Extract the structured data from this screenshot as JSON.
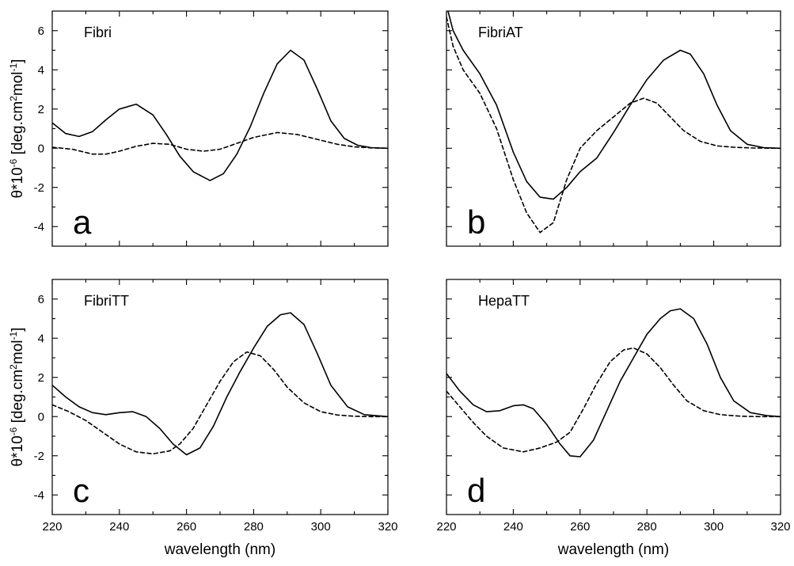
{
  "chart_data": [
    {
      "type": "line",
      "panel": "a",
      "title": "Fibri",
      "xlabel": "",
      "ylabel": "θ*10⁻⁶ [deg.cm²mol⁻¹]",
      "xlim": [
        220,
        320
      ],
      "ylim": [
        -5,
        7
      ],
      "xticks": [
        220,
        240,
        260,
        280,
        300,
        320
      ],
      "yticks": [
        -4,
        -2,
        0,
        2,
        4,
        6
      ],
      "show_xtick_labels": false,
      "show_ytick_labels": true,
      "series": [
        {
          "style": "solid",
          "x": [
            220,
            224,
            228,
            232,
            236,
            240,
            245,
            250,
            254,
            258,
            262,
            267,
            271,
            275,
            279,
            283,
            287,
            291,
            295,
            299,
            303,
            307,
            311,
            315,
            320
          ],
          "y": [
            1.3,
            0.75,
            0.6,
            0.85,
            1.45,
            2.0,
            2.25,
            1.7,
            0.7,
            -0.4,
            -1.2,
            -1.65,
            -1.3,
            -0.3,
            1.1,
            2.8,
            4.3,
            5.0,
            4.5,
            3.0,
            1.4,
            0.5,
            0.15,
            0.03,
            0.0
          ]
        },
        {
          "style": "dashed",
          "x": [
            220,
            226,
            232,
            236,
            240,
            245,
            250,
            255,
            260,
            265,
            270,
            275,
            280,
            287,
            293,
            299,
            305,
            310,
            315,
            320
          ],
          "y": [
            0.05,
            -0.05,
            -0.3,
            -0.3,
            -0.15,
            0.1,
            0.25,
            0.2,
            -0.05,
            -0.15,
            -0.05,
            0.25,
            0.55,
            0.8,
            0.7,
            0.45,
            0.2,
            0.07,
            0.02,
            0.0
          ]
        }
      ]
    },
    {
      "type": "line",
      "panel": "b",
      "title": "FibriAT",
      "xlabel": "",
      "ylabel": "",
      "xlim": [
        220,
        320
      ],
      "ylim": [
        -5,
        7
      ],
      "xticks": [
        220,
        240,
        260,
        280,
        300,
        320
      ],
      "yticks": [
        -4,
        -2,
        0,
        2,
        4,
        6
      ],
      "show_xtick_labels": false,
      "show_ytick_labels": false,
      "series": [
        {
          "style": "solid",
          "x": [
            220,
            222,
            225,
            230,
            235,
            240,
            244,
            248,
            252,
            256,
            260,
            265,
            270,
            275,
            280,
            285,
            290,
            293,
            297,
            301,
            305,
            310,
            315,
            320
          ],
          "y": [
            7.3,
            6.0,
            5.0,
            3.8,
            2.2,
            -0.2,
            -1.7,
            -2.5,
            -2.6,
            -2.0,
            -1.2,
            -0.5,
            0.8,
            2.2,
            3.5,
            4.5,
            5.0,
            4.8,
            3.8,
            2.2,
            0.9,
            0.2,
            0.03,
            0.0
          ]
        },
        {
          "style": "dashed",
          "x": [
            220,
            222,
            225,
            230,
            235,
            240,
            244,
            248,
            252,
            256,
            260,
            265,
            270,
            275,
            279,
            283,
            287,
            291,
            296,
            301,
            306,
            312,
            320
          ],
          "y": [
            6.7,
            5.2,
            4.0,
            2.8,
            1.0,
            -1.6,
            -3.3,
            -4.3,
            -3.8,
            -1.6,
            0.0,
            0.9,
            1.6,
            2.3,
            2.55,
            2.3,
            1.6,
            0.9,
            0.35,
            0.12,
            0.05,
            0.01,
            0.0
          ]
        }
      ]
    },
    {
      "type": "line",
      "panel": "c",
      "title": "FibriTT",
      "xlabel": "wavelength (nm)",
      "ylabel": "θ*10⁻⁶ [deg.cm²mol⁻¹]",
      "xlim": [
        220,
        320
      ],
      "ylim": [
        -5,
        7
      ],
      "xticks": [
        220,
        240,
        260,
        280,
        300,
        320
      ],
      "yticks": [
        -4,
        -2,
        0,
        2,
        4,
        6
      ],
      "show_xtick_labels": true,
      "show_ytick_labels": true,
      "series": [
        {
          "style": "solid",
          "x": [
            220,
            224,
            228,
            232,
            236,
            240,
            244,
            248,
            252,
            256,
            260,
            264,
            268,
            272,
            276,
            280,
            284,
            288,
            291,
            295,
            299,
            303,
            308,
            313,
            320
          ],
          "y": [
            1.6,
            1.0,
            0.5,
            0.2,
            0.1,
            0.2,
            0.25,
            0.0,
            -0.6,
            -1.4,
            -1.95,
            -1.6,
            -0.5,
            1.0,
            2.3,
            3.5,
            4.6,
            5.2,
            5.3,
            4.7,
            3.2,
            1.6,
            0.5,
            0.1,
            0.0
          ]
        },
        {
          "style": "dashed",
          "x": [
            220,
            225,
            230,
            235,
            240,
            245,
            250,
            255,
            258,
            262,
            266,
            270,
            274,
            278,
            282,
            286,
            290,
            295,
            300,
            305,
            310,
            315,
            320
          ],
          "y": [
            0.6,
            0.25,
            -0.2,
            -0.8,
            -1.4,
            -1.8,
            -1.9,
            -1.75,
            -1.4,
            -0.6,
            0.6,
            1.8,
            2.8,
            3.3,
            3.1,
            2.4,
            1.5,
            0.7,
            0.25,
            0.08,
            0.02,
            0.0,
            0.0
          ]
        }
      ]
    },
    {
      "type": "line",
      "panel": "d",
      "title": "HepaTT",
      "xlabel": "wavelength (nm)",
      "ylabel": "",
      "xlim": [
        220,
        320
      ],
      "ylim": [
        -5,
        7
      ],
      "xticks": [
        220,
        240,
        260,
        280,
        300,
        320
      ],
      "yticks": [
        -4,
        -2,
        0,
        2,
        4,
        6
      ],
      "show_xtick_labels": true,
      "show_ytick_labels": false,
      "series": [
        {
          "style": "solid",
          "x": [
            220,
            224,
            228,
            232,
            236,
            240,
            243,
            246,
            250,
            254,
            257,
            260,
            264,
            268,
            272,
            276,
            280,
            284,
            287,
            290,
            294,
            298,
            302,
            306,
            311,
            316,
            320
          ],
          "y": [
            2.2,
            1.3,
            0.6,
            0.25,
            0.3,
            0.55,
            0.6,
            0.4,
            -0.4,
            -1.4,
            -2.0,
            -2.05,
            -1.2,
            0.3,
            1.8,
            3.0,
            4.2,
            5.0,
            5.4,
            5.5,
            5.0,
            3.7,
            2.0,
            0.8,
            0.2,
            0.05,
            0.0
          ]
        },
        {
          "style": "dashed",
          "x": [
            220,
            224,
            228,
            232,
            237,
            243,
            248,
            253,
            257,
            261,
            265,
            269,
            273,
            276,
            280,
            284,
            288,
            292,
            297,
            302,
            308,
            314,
            320
          ],
          "y": [
            1.3,
            0.5,
            -0.3,
            -1.0,
            -1.6,
            -1.8,
            -1.6,
            -1.3,
            -0.8,
            0.4,
            1.7,
            2.8,
            3.4,
            3.5,
            3.2,
            2.5,
            1.6,
            0.8,
            0.3,
            0.1,
            0.02,
            0.0,
            0.0
          ]
        }
      ]
    }
  ]
}
